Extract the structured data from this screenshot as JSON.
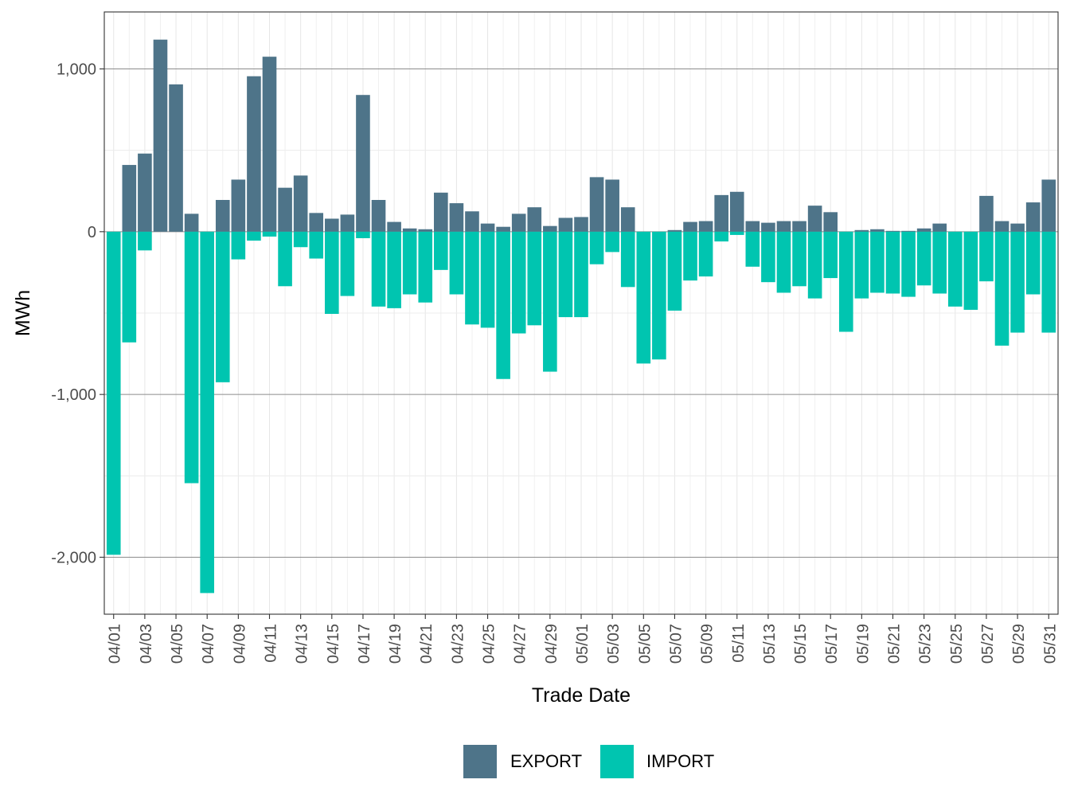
{
  "chart_data": {
    "type": "bar",
    "stacked": true,
    "xlabel": "Trade Date",
    "ylabel": "MWh",
    "ylim": [
      -2350,
      1350
    ],
    "y_ticks": [
      -2000,
      -1000,
      0,
      1000
    ],
    "y_tick_labels": [
      "-2,000",
      "-1,000",
      "0",
      "1,000"
    ],
    "grid": true,
    "legend_position": "bottom",
    "categories": [
      "04/01",
      "04/02",
      "04/03",
      "04/04",
      "04/05",
      "04/06",
      "04/07",
      "04/08",
      "04/09",
      "04/10",
      "04/11",
      "04/12",
      "04/13",
      "04/14",
      "04/15",
      "04/16",
      "04/17",
      "04/18",
      "04/19",
      "04/20",
      "04/21",
      "04/22",
      "04/23",
      "04/24",
      "04/25",
      "04/26",
      "04/27",
      "04/28",
      "04/29",
      "04/30",
      "05/01",
      "05/02",
      "05/03",
      "05/04",
      "05/05",
      "05/06",
      "05/07",
      "05/08",
      "05/09",
      "05/10",
      "05/11",
      "05/12",
      "05/13",
      "05/14",
      "05/15",
      "05/16",
      "05/17",
      "05/18",
      "05/19",
      "05/20",
      "05/21",
      "05/22",
      "05/23",
      "05/24",
      "05/25",
      "05/26",
      "05/27",
      "05/28",
      "05/29",
      "05/30",
      "05/31"
    ],
    "x_tick_labels": [
      "04/01",
      "04/03",
      "04/05",
      "04/07",
      "04/09",
      "04/11",
      "04/13",
      "04/15",
      "04/17",
      "04/19",
      "04/21",
      "04/23",
      "04/25",
      "04/27",
      "04/29",
      "05/01",
      "05/03",
      "05/05",
      "05/07",
      "05/09",
      "05/11",
      "05/13",
      "05/15",
      "05/17",
      "05/19",
      "05/21",
      "05/23",
      "05/25",
      "05/27",
      "05/29",
      "05/31"
    ],
    "series": [
      {
        "name": "EXPORT",
        "color": "#4e7489",
        "values": [
          0,
          410,
          480,
          1180,
          905,
          110,
          0,
          195,
          320,
          955,
          1075,
          270,
          345,
          115,
          80,
          105,
          840,
          195,
          60,
          20,
          15,
          240,
          175,
          125,
          50,
          30,
          110,
          150,
          35,
          85,
          90,
          335,
          320,
          150,
          0,
          0,
          10,
          60,
          65,
          225,
          245,
          65,
          55,
          65,
          65,
          160,
          120,
          0,
          10,
          15,
          5,
          5,
          20,
          50,
          0,
          0,
          220,
          65,
          50,
          180,
          320
        ]
      },
      {
        "name": "IMPORT",
        "color": "#00c5b0",
        "values": [
          -1985,
          -680,
          -115,
          0,
          0,
          -1545,
          -2220,
          -925,
          -170,
          -55,
          -30,
          -335,
          -95,
          -165,
          -505,
          -395,
          -40,
          -460,
          -470,
          -385,
          -435,
          -235,
          -385,
          -570,
          -590,
          -905,
          -625,
          -575,
          -860,
          -525,
          -525,
          -200,
          -125,
          -340,
          -810,
          -785,
          -485,
          -300,
          -275,
          -60,
          -20,
          -215,
          -310,
          -375,
          -335,
          -410,
          -285,
          -615,
          -410,
          -375,
          -380,
          -400,
          -330,
          -380,
          -460,
          -480,
          -305,
          -700,
          -620,
          -385,
          -620
        ]
      }
    ]
  }
}
